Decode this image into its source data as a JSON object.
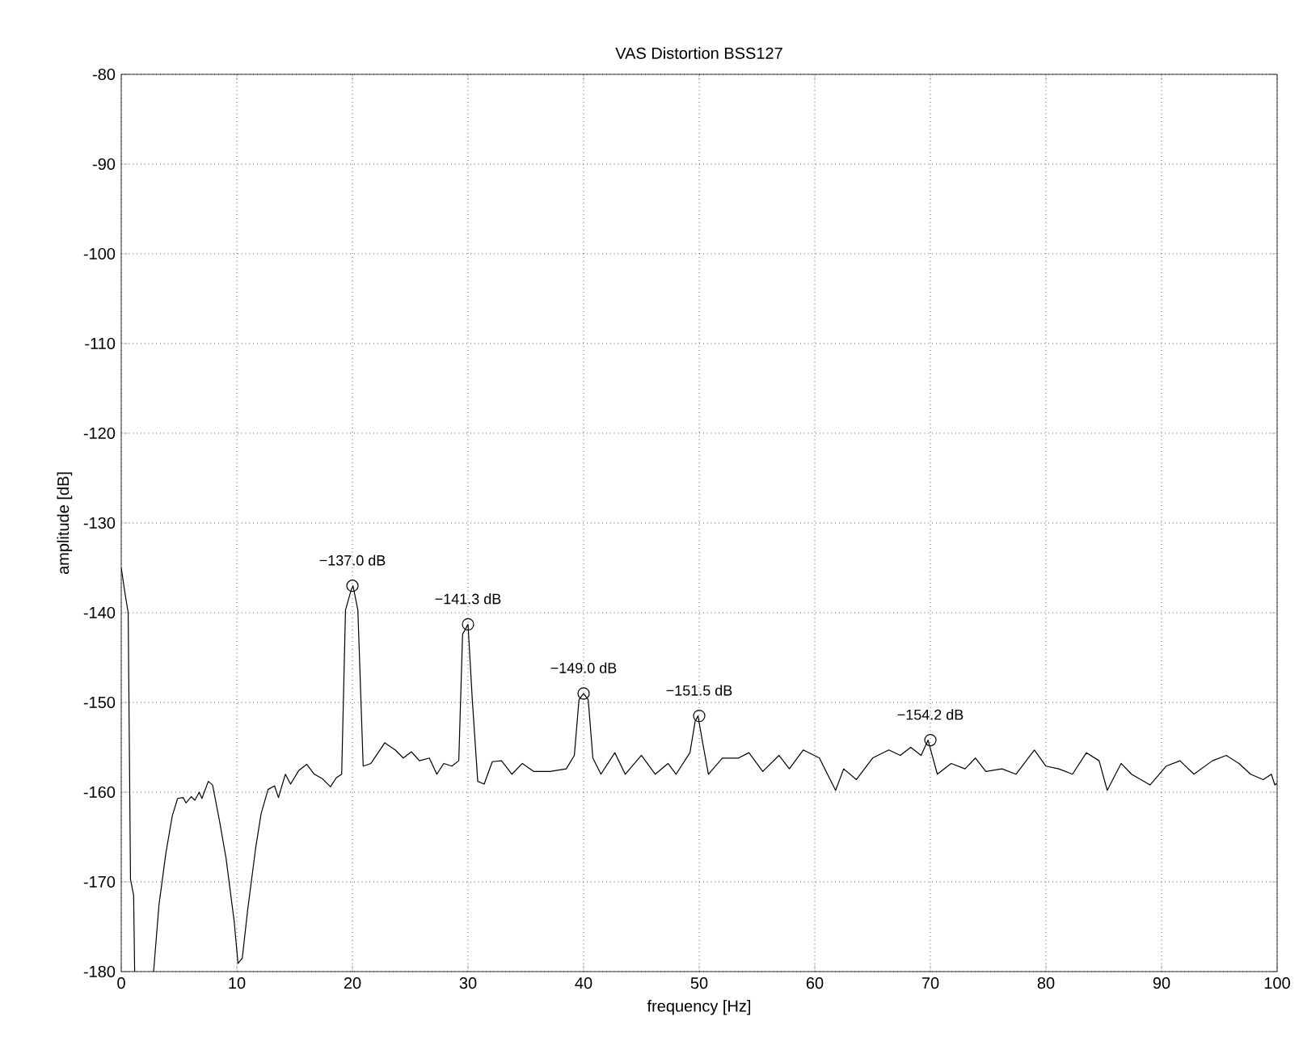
{
  "chart_data": {
    "type": "line",
    "title": "VAS Distortion BSS127",
    "xlabel": "frequency [Hz]",
    "ylabel": "amplitude [dB]",
    "xlim": [
      0,
      100
    ],
    "xticks": [
      0,
      10,
      20,
      30,
      40,
      50,
      60,
      70,
      80,
      90,
      100
    ],
    "ylim": [
      -180,
      -80
    ],
    "yticks": [
      -180,
      -170,
      -160,
      -150,
      -140,
      -130,
      -120,
      -110,
      -100,
      -90,
      -80
    ],
    "grid": true,
    "series": [
      {
        "type": "line",
        "color": "#000000",
        "marker": "none",
        "line_style": "solid",
        "x": [
          0,
          0.33,
          0.6,
          0.8,
          1.07,
          1.16,
          2.0,
          2.8,
          3.26,
          3.86,
          4.42,
          4.88,
          5.35,
          5.6,
          6.05,
          6.37,
          6.74,
          6.98,
          7.53,
          7.9,
          8.5,
          9.07,
          9.77,
          10.1,
          10.47,
          10.93,
          11.63,
          12.1,
          12.7,
          13.26,
          13.6,
          14.2,
          14.65,
          15.35,
          16.05,
          16.7,
          17.4,
          18.1,
          18.6,
          19.07,
          19.4,
          19.86,
          20.05,
          20.47,
          20.93,
          21.6,
          22.8,
          23.7,
          24.4,
          25.1,
          25.8,
          26.65,
          27.3,
          27.9,
          28.6,
          29.2,
          29.53,
          30.0,
          30.37,
          30.84,
          31.4,
          32.1,
          32.9,
          33.8,
          34.7,
          35.7,
          37.1,
          38.5,
          39.2,
          39.6,
          40.0,
          40.4,
          40.8,
          41.5,
          42.7,
          43.6,
          45.0,
          46.2,
          47.3,
          48.0,
          49.2,
          49.65,
          49.9,
          50.3,
          50.8,
          52.0,
          53.4,
          54.3,
          55.5,
          56.9,
          57.8,
          59.0,
          60.4,
          61.8,
          62.5,
          63.6,
          65.0,
          66.4,
          67.4,
          68.3,
          69.2,
          69.8,
          70.6,
          71.8,
          73.0,
          73.9,
          74.8,
          76.2,
          77.4,
          79.0,
          80.0,
          81.1,
          82.3,
          83.5,
          84.6,
          85.3,
          86.5,
          87.4,
          89.0,
          90.4,
          91.6,
          92.8,
          94.4,
          95.6,
          96.7,
          97.7,
          98.8,
          99.5,
          99.8,
          100
        ],
        "values": [
          -135.0,
          -137.9,
          -140,
          -169.7,
          -171.5,
          -180,
          null,
          -180,
          -172.6,
          -166.8,
          -162.6,
          -160.7,
          -160.6,
          -161.2,
          -160.5,
          -160.9,
          -160,
          -160.7,
          -158.8,
          -159.2,
          -163.2,
          -167.4,
          -174.4,
          -179.1,
          -178.5,
          -173.2,
          -166.2,
          -162.4,
          -159.7,
          -159.3,
          -160.6,
          -158,
          -159.1,
          -157.6,
          -156.9,
          -158,
          -158.5,
          -159.4,
          -158.4,
          -158,
          -139.7,
          -137.6,
          -137.0,
          -139.7,
          -157.1,
          -156.8,
          -154.5,
          -155.3,
          -156.2,
          -155.5,
          -156.5,
          -156.2,
          -158,
          -156.8,
          -157.1,
          -156.5,
          -142.4,
          -141.3,
          -149.7,
          -158.8,
          -159.1,
          -156.6,
          -156.5,
          -158,
          -156.8,
          -157.7,
          -157.7,
          -157.4,
          -155.9,
          -149.7,
          -149.0,
          -149.7,
          -156.2,
          -158,
          -155.6,
          -158,
          -155.9,
          -158,
          -156.8,
          -158,
          -155.6,
          -152.1,
          -151.5,
          -154.5,
          -158,
          -156.2,
          -156.2,
          -155.6,
          -157.7,
          -155.9,
          -157.4,
          -155.3,
          -156.2,
          -159.8,
          -157.4,
          -158.6,
          -156.2,
          -155.3,
          -155.9,
          -155,
          -155.9,
          -154.2,
          -158,
          -156.8,
          -157.4,
          -156.2,
          -157.7,
          -157.4,
          -158,
          -155.3,
          -157.1,
          -157.4,
          -158,
          -155.6,
          -156.5,
          -159.8,
          -156.8,
          -158,
          -159.2,
          -157.1,
          -156.5,
          -158,
          -156.5,
          -155.9,
          -156.8,
          -158,
          -158.6,
          -158,
          -159.2,
          -159
        ]
      },
      {
        "type": "scatter",
        "color": "#000000",
        "marker": "circle",
        "x": [
          20,
          30,
          40,
          50,
          70
        ],
        "values": [
          -137.0,
          -141.3,
          -149.0,
          -151.5,
          -154.2
        ],
        "value_labels": [
          "−137.0 dB",
          "−141.3 dB",
          "−149.0 dB",
          "−151.5 dB",
          "−154.2 dB"
        ]
      }
    ]
  }
}
